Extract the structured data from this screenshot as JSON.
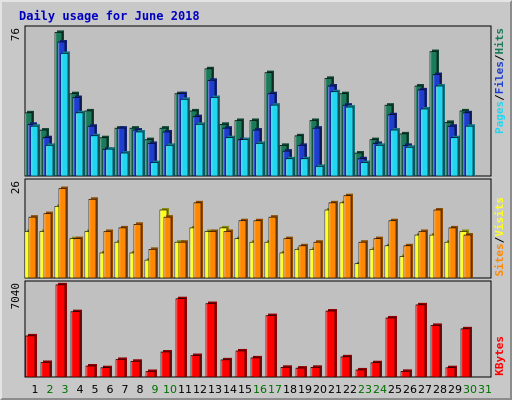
{
  "title": "Daily usage for June 2018",
  "colors": {
    "title": "#0000c0",
    "frame_bg": "#c8c8c8",
    "plot_bg": "#c0c0c0",
    "hits": "#1a7a5a",
    "files": "#1e3ed0",
    "pages": "#22d6ef",
    "visits": "#ff8800",
    "sites": "#ffff20",
    "kbytes": "#ff0000",
    "weekday": "#000000",
    "weekend": "#007000"
  },
  "legend_top": {
    "pages": "Pages",
    "sep1": "/",
    "files": "Files",
    "sep2": "/",
    "hits": "Hits"
  },
  "legend_mid": {
    "sites": "Sites",
    "sep": "/",
    "visits": "Visits"
  },
  "legend_bottom": {
    "kbytes": "KBytes"
  },
  "chart_data": [
    {
      "type": "bar",
      "title": "Daily usage for June 2018",
      "ymax_label": "76",
      "ylim": [
        0,
        76
      ],
      "categories": [
        "1",
        "2",
        "3",
        "4",
        "5",
        "6",
        "7",
        "8",
        "9",
        "10",
        "11",
        "12",
        "13",
        "14",
        "15",
        "16",
        "17",
        "18",
        "19",
        "20",
        "21",
        "22",
        "23",
        "24",
        "25",
        "26",
        "27",
        "28",
        "29",
        "30",
        "31"
      ],
      "weekend_days": [
        "2",
        "3",
        "9",
        "10",
        "16",
        "17",
        "23",
        "24",
        "30",
        "31"
      ],
      "series": [
        {
          "name": "Hits",
          "values": [
            33,
            24,
            75,
            43,
            34,
            20,
            25,
            25,
            19,
            25,
            43,
            34,
            56,
            27,
            29,
            29,
            54,
            16,
            21,
            29,
            51,
            43,
            12,
            19,
            37,
            22,
            47,
            65,
            28,
            34,
            0
          ]
        },
        {
          "name": "Files",
          "values": [
            27,
            20,
            70,
            41,
            26,
            14,
            25,
            24,
            17,
            23,
            43,
            31,
            50,
            25,
            19,
            24,
            43,
            13,
            16,
            25,
            47,
            37,
            9,
            17,
            32,
            16,
            45,
            53,
            26,
            33,
            0
          ]
        },
        {
          "name": "Pages",
          "values": [
            26,
            16,
            64,
            33,
            21,
            14,
            12,
            23,
            7,
            16,
            40,
            27,
            41,
            20,
            19,
            17,
            37,
            9,
            9,
            5,
            44,
            36,
            7,
            16,
            24,
            15,
            35,
            47,
            20,
            26,
            0
          ]
        }
      ]
    },
    {
      "type": "bar",
      "ymax_label": "26",
      "ylim": [
        0,
        26
      ],
      "categories": [
        "1",
        "2",
        "3",
        "4",
        "5",
        "6",
        "7",
        "8",
        "9",
        "10",
        "11",
        "12",
        "13",
        "14",
        "15",
        "16",
        "17",
        "18",
        "19",
        "20",
        "21",
        "22",
        "23",
        "24",
        "25",
        "26",
        "27",
        "28",
        "29",
        "30",
        "31"
      ],
      "series": [
        {
          "name": "Sites",
          "values": [
            13,
            13,
            20,
            11,
            13,
            7,
            10,
            7,
            5,
            19,
            10,
            14,
            13,
            14,
            11,
            10,
            10,
            7,
            8,
            8,
            19,
            21,
            4,
            8,
            9,
            6,
            12,
            12,
            10,
            13,
            0
          ]
        },
        {
          "name": "Visits",
          "values": [
            17,
            18,
            25,
            11,
            22,
            13,
            14,
            15,
            8,
            17,
            10,
            21,
            13,
            13,
            16,
            16,
            17,
            11,
            9,
            10,
            21,
            23,
            10,
            11,
            16,
            9,
            13,
            19,
            14,
            12,
            0
          ]
        }
      ]
    },
    {
      "type": "bar",
      "ymax_label": "7040",
      "ylim": [
        0,
        7040
      ],
      "categories": [
        "1",
        "2",
        "3",
        "4",
        "5",
        "6",
        "7",
        "8",
        "9",
        "10",
        "11",
        "12",
        "13",
        "14",
        "15",
        "16",
        "17",
        "18",
        "19",
        "20",
        "21",
        "22",
        "23",
        "24",
        "25",
        "26",
        "27",
        "28",
        "29",
        "30",
        "31"
      ],
      "series": [
        {
          "name": "KBytes",
          "values": [
            3140,
            1110,
            7040,
            4990,
            840,
            710,
            1340,
            1200,
            420,
            1910,
            5980,
            1640,
            5610,
            1310,
            1990,
            1460,
            4690,
            740,
            680,
            740,
            5040,
            1540,
            540,
            1090,
            4510,
            430,
            5510,
            3940,
            710,
            3680,
            0
          ]
        }
      ]
    }
  ]
}
